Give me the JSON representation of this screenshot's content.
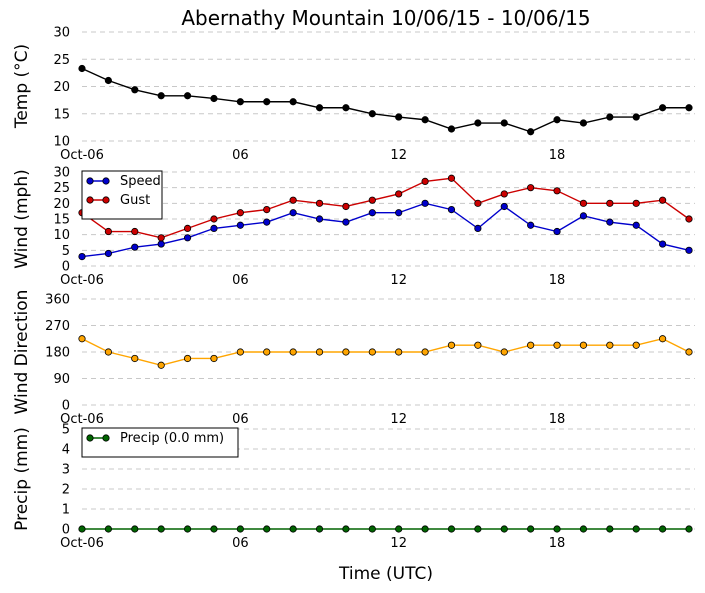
{
  "chart_data": {
    "type": "line",
    "title": "Abernathy Mountain 10/06/15 - 10/06/15",
    "xlabel": "Time (UTC)",
    "x_hours": [
      0,
      1,
      2,
      3,
      4,
      5,
      6,
      7,
      8,
      9,
      10,
      11,
      12,
      13,
      14,
      15,
      16,
      17,
      18,
      19,
      20,
      21,
      22,
      23
    ],
    "x_tick_labels": [
      {
        "hour": 0,
        "label": "Oct-06"
      },
      {
        "hour": 6,
        "label": "06"
      },
      {
        "hour": 12,
        "label": "12"
      },
      {
        "hour": 18,
        "label": "18"
      }
    ],
    "panels": [
      {
        "id": "temp",
        "ylabel": "Temp (°C)",
        "ylim": [
          10,
          30
        ],
        "yticks": [
          10,
          15,
          20,
          25,
          30
        ],
        "grid": true,
        "legend": null,
        "series": [
          {
            "name": "Temp",
            "color": "#000000",
            "values": [
              23.3,
              21.1,
              19.4,
              18.3,
              18.3,
              17.8,
              17.2,
              17.2,
              17.2,
              16.1,
              16.1,
              15.0,
              14.4,
              13.9,
              12.2,
              13.3,
              13.3,
              11.7,
              13.9,
              13.3,
              14.4,
              14.4,
              16.1,
              16.1
            ]
          }
        ]
      },
      {
        "id": "wind",
        "ylabel": "Wind (mph)",
        "ylim": [
          0,
          30
        ],
        "yticks": [
          0,
          5,
          10,
          15,
          20,
          25,
          30
        ],
        "grid": true,
        "legend": "top-left",
        "series": [
          {
            "name": "Speed",
            "color": "#0000cc",
            "values": [
              3,
              4,
              6,
              7,
              9,
              12,
              13,
              14,
              17,
              15,
              14,
              17,
              17,
              20,
              18,
              12,
              19,
              13,
              11,
              16,
              14,
              13,
              7,
              5
            ]
          },
          {
            "name": "Gust",
            "color": "#cc0000",
            "values": [
              17,
              11,
              11,
              9,
              12,
              15,
              17,
              18,
              21,
              20,
              19,
              21,
              23,
              27,
              28,
              20,
              23,
              25,
              24,
              20,
              20,
              20,
              21,
              15
            ]
          }
        ]
      },
      {
        "id": "wdir",
        "ylabel": "Wind Direction",
        "ylim": [
          0,
          360
        ],
        "yticks": [
          0,
          90,
          180,
          270,
          360
        ],
        "grid": true,
        "legend": null,
        "series": [
          {
            "name": "Direction",
            "color": "#ffa500",
            "values": [
              225,
              180,
              158,
              135,
              158,
              158,
              180,
              180,
              180,
              180,
              180,
              180,
              180,
              180,
              203,
              203,
              180,
              203,
              203,
              203,
              203,
              203,
              225,
              180
            ]
          }
        ]
      },
      {
        "id": "precip",
        "ylabel": "Precip (mm)",
        "ylim": [
          0,
          5
        ],
        "yticks": [
          0,
          1,
          2,
          3,
          4,
          5
        ],
        "grid": true,
        "legend": "top-left",
        "series": [
          {
            "name": "Precip (0.0 mm)",
            "color": "#006400",
            "values": [
              0,
              0,
              0,
              0,
              0,
              0,
              0,
              0,
              0,
              0,
              0,
              0,
              0,
              0,
              0,
              0,
              0,
              0,
              0,
              0,
              0,
              0,
              0,
              0
            ]
          }
        ]
      }
    ]
  }
}
